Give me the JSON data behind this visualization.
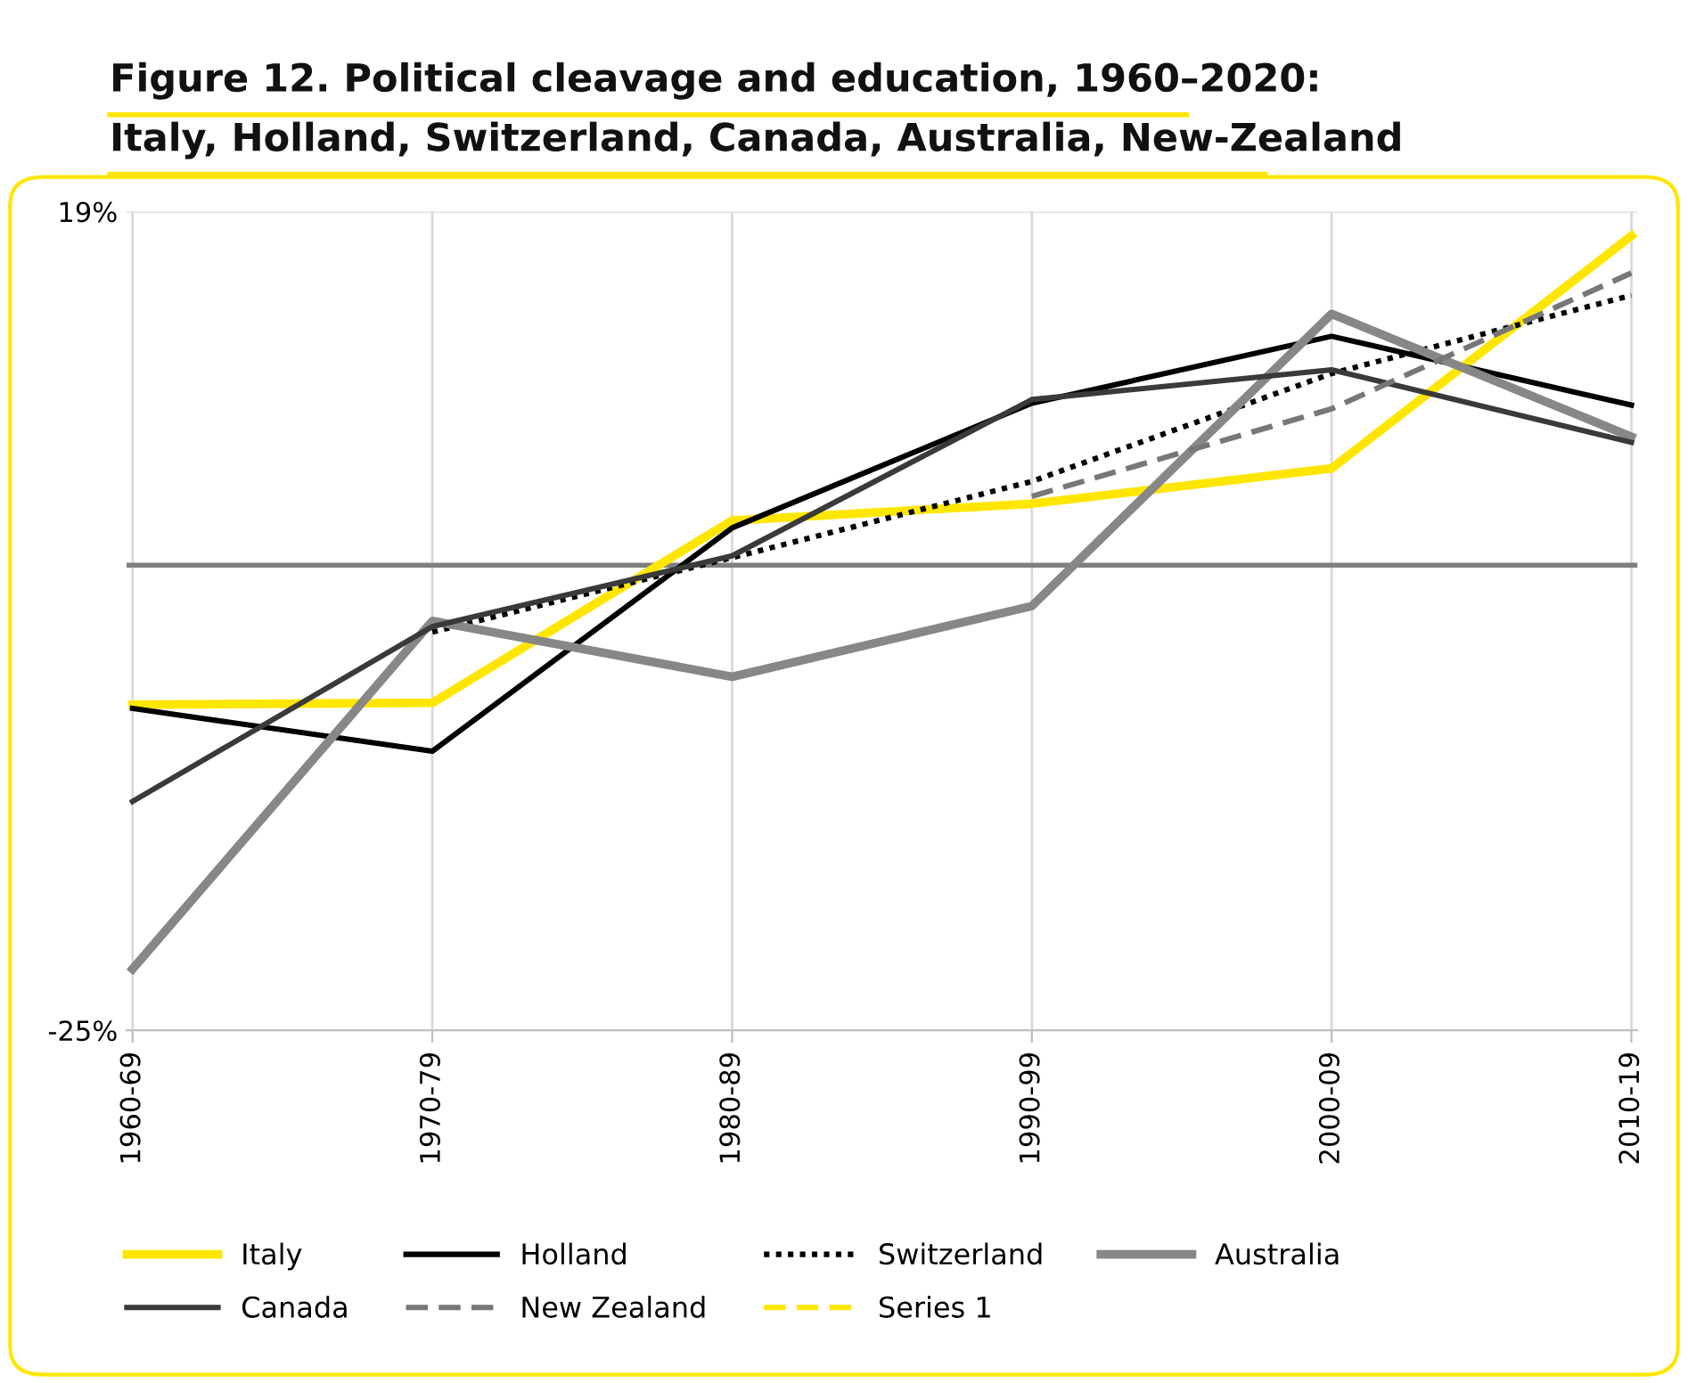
{
  "chart_data": {
    "type": "line",
    "title": "Figure 12. Political cleavage and education, 1960–2020:\nItaly, Holland, Switzerland, Canada, Australia, New-Zealand",
    "categories": [
      "1960-69",
      "1970-79",
      "1980-89",
      "1990-99",
      "2000-09",
      "2010-19"
    ],
    "series": [
      {
        "name": "Italy",
        "color": "#ffe600",
        "values": [
          -7.5,
          -7.4,
          2.4,
          3.3,
          5.2,
          17.7
        ]
      },
      {
        "name": "Holland",
        "color": "#000000",
        "values": [
          -7.7,
          -10.0,
          2.0,
          8.7,
          12.3,
          8.6
        ]
      },
      {
        "name": "Switzerland",
        "color": "#000000",
        "line_style": "dotted",
        "values": [
          null,
          -3.6,
          0.4,
          4.5,
          10.3,
          14.5
        ]
      },
      {
        "name": "Australia",
        "color": "#878787",
        "values": [
          -21.7,
          -3.0,
          -6.0,
          -2.2,
          13.5,
          6.9
        ]
      },
      {
        "name": "Canada",
        "color": "#3a3a3a",
        "values": [
          -12.7,
          -3.3,
          0.5,
          8.9,
          10.5,
          6.6
        ]
      },
      {
        "name": "New Zealand",
        "color": "#777777",
        "line_style": "dashed",
        "values": [
          null,
          null,
          null,
          3.7,
          8.4,
          15.7
        ]
      },
      {
        "name": "Series 1",
        "color": "#ffe600",
        "line_style": "dashed",
        "values": [
          null,
          null,
          null,
          null,
          null,
          null
        ]
      }
    ],
    "ylim": [
      -25,
      19
    ],
    "yticks": [
      {
        "value": -25,
        "label": "-25%"
      },
      {
        "value": 19,
        "label": "19%"
      }
    ],
    "ref_lines": [
      {
        "axis": "y",
        "value": 0,
        "color": "#7f7f7f"
      }
    ],
    "grid": true,
    "legend": "bottom"
  }
}
